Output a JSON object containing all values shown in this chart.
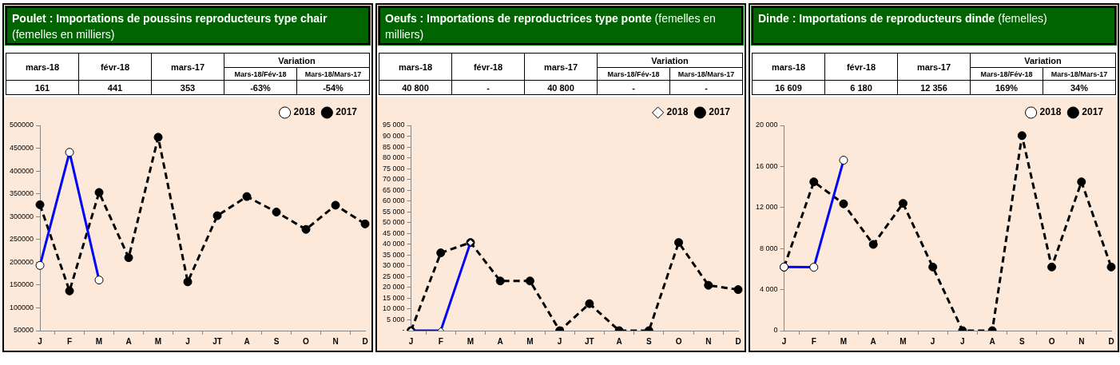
{
  "chart_data": [
    {
      "type": "line",
      "title": "Poulet : Importations de poussins reproducteurs type chair",
      "subtitle": "(femelles en milliers)",
      "annotations": [
        "mars-18",
        "févr-18",
        "mars-17",
        "Variation",
        "Mars-18/Fév-18",
        "Mars-18/Mars-17",
        "161",
        "441",
        "353",
        "-63%",
        "-54%"
      ],
      "categories": [
        "J",
        "F",
        "M",
        "A",
        "M",
        "J",
        "JT",
        "A",
        "S",
        "O",
        "N",
        "D"
      ],
      "series": [
        {
          "name": "2018",
          "color": "#0000ff",
          "marker": "circle",
          "line_style": "solid",
          "values": [
            193000,
            441000,
            161000,
            null,
            null,
            null,
            null,
            null,
            null,
            null,
            null,
            null
          ]
        },
        {
          "name": "2017",
          "color": "#000000",
          "marker": "circle",
          "line_style": "dashed",
          "values": [
            326000,
            137000,
            353000,
            210000,
            474000,
            157000,
            302000,
            344000,
            310000,
            272000,
            325000,
            284000
          ]
        }
      ],
      "ylim": [
        50000,
        500000
      ],
      "yticks": [
        50000,
        100000,
        150000,
        200000,
        250000,
        300000,
        350000,
        400000,
        450000,
        500000
      ],
      "grid": false,
      "legend": "top right"
    },
    {
      "type": "line",
      "title": "Oeufs : Importations de reproductrices type ponte",
      "subtitle": "(femelles en milliers)",
      "annotations": [
        "mars-18",
        "févr-18",
        "mars-17",
        "Variation",
        "Mars-18/Fév-18",
        "Mars-18/Mars-17",
        "40 800",
        "-",
        "40 800",
        "-",
        "-"
      ],
      "categories": [
        "J",
        "F",
        "M",
        "A",
        "M",
        "J",
        "JT",
        "A",
        "S",
        "O",
        "N",
        "D"
      ],
      "series": [
        {
          "name": "2018",
          "color": "#0000ff",
          "marker": "diamond",
          "line_style": "solid",
          "values": [
            0,
            0,
            40800,
            null,
            null,
            null,
            null,
            null,
            null,
            null,
            null,
            null
          ]
        },
        {
          "name": "2017",
          "color": "#000000",
          "marker": "circle",
          "line_style": "dashed",
          "values": [
            0,
            36000,
            40800,
            23000,
            23000,
            0,
            12500,
            0,
            0,
            40800,
            21000,
            19000
          ]
        }
      ],
      "ylim": [
        0,
        95000
      ],
      "yticks": [
        {
          "value": 0,
          "label": "-"
        },
        {
          "value": 5000,
          "label": "5 000"
        },
        {
          "value": 10000,
          "label": "10 000"
        },
        {
          "value": 15000,
          "label": "15 000"
        },
        {
          "value": 20000,
          "label": "20 000"
        },
        {
          "value": 25000,
          "label": "25 000"
        },
        {
          "value": 30000,
          "label": "30 000"
        },
        {
          "value": 35000,
          "label": "35 000"
        },
        {
          "value": 40000,
          "label": "40 000"
        },
        {
          "value": 45000,
          "label": "45 000"
        },
        {
          "value": 50000,
          "label": "50 000"
        },
        {
          "value": 55000,
          "label": "55 000"
        },
        {
          "value": 60000,
          "label": "60 000"
        },
        {
          "value": 65000,
          "label": "65 000"
        },
        {
          "value": 70000,
          "label": "70 000"
        },
        {
          "value": 75000,
          "label": "75 000"
        },
        {
          "value": 80000,
          "label": "80 000"
        },
        {
          "value": 85000,
          "label": "85 000"
        },
        {
          "value": 90000,
          "label": "90 000"
        },
        {
          "value": 95000,
          "label": "95 000"
        }
      ],
      "grid": false,
      "legend": "top right"
    },
    {
      "type": "line",
      "title": "Dinde : Importations de reproducteurs dinde",
      "subtitle": "(femelles)",
      "annotations": [
        "mars-18",
        "févr-18",
        "mars-17",
        "Variation",
        "Mars-18/Fév-18",
        "Mars-18/Mars-17",
        "16 609",
        "6 180",
        "12 356",
        "169%",
        "34%"
      ],
      "categories": [
        "J",
        "F",
        "M",
        "A",
        "M",
        "J",
        "J",
        "A",
        "S",
        "O",
        "N",
        "D"
      ],
      "series": [
        {
          "name": "2018",
          "color": "#0000ff",
          "marker": "circle",
          "line_style": "solid",
          "values": [
            6200,
            6180,
            16609,
            null,
            null,
            null,
            null,
            null,
            null,
            null,
            null,
            null
          ]
        },
        {
          "name": "2017",
          "color": "#000000",
          "marker": "circle",
          "line_style": "dashed",
          "values": [
            6200,
            14500,
            12356,
            8400,
            12400,
            6200,
            0,
            0,
            19000,
            6200,
            14500,
            6200
          ]
        }
      ],
      "ylim": [
        0,
        20000
      ],
      "yticks": [
        0,
        {
          "value": 4000,
          "label": "4 000"
        },
        {
          "value": 8000,
          "label": "8 000"
        },
        {
          "value": 12000,
          "label": "12 000"
        },
        {
          "value": 16000,
          "label": "16 000"
        },
        {
          "value": 20000,
          "label": "20 000"
        }
      ],
      "grid": false,
      "legend": "top right"
    }
  ]
}
